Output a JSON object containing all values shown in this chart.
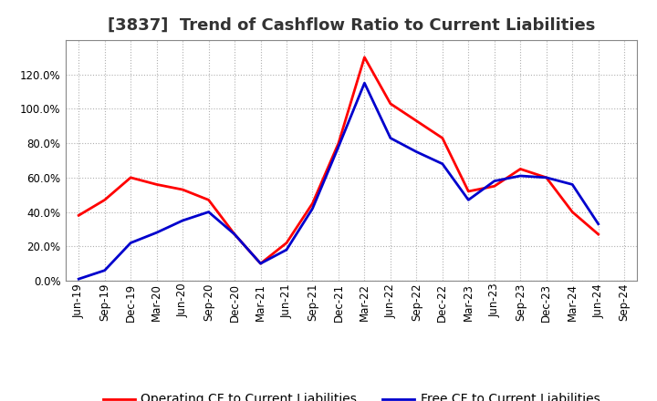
{
  "title": "[3837]  Trend of Cashflow Ratio to Current Liabilities",
  "x_labels": [
    "Jun-19",
    "Sep-19",
    "Dec-19",
    "Mar-20",
    "Jun-20",
    "Sep-20",
    "Dec-20",
    "Mar-21",
    "Jun-21",
    "Sep-21",
    "Dec-21",
    "Mar-22",
    "Jun-22",
    "Sep-22",
    "Dec-22",
    "Mar-23",
    "Jun-23",
    "Sep-23",
    "Dec-23",
    "Mar-24",
    "Jun-24",
    "Sep-24"
  ],
  "operating_cf": [
    0.38,
    0.47,
    0.6,
    0.56,
    0.53,
    0.47,
    0.27,
    0.1,
    0.22,
    0.45,
    0.8,
    1.3,
    1.03,
    0.93,
    0.83,
    0.52,
    0.55,
    0.65,
    0.6,
    0.4,
    0.27,
    null
  ],
  "free_cf": [
    0.01,
    0.06,
    0.22,
    0.28,
    0.35,
    0.4,
    0.27,
    0.1,
    0.18,
    0.42,
    0.78,
    1.15,
    0.83,
    0.75,
    0.68,
    0.47,
    0.58,
    0.61,
    0.6,
    0.56,
    0.33,
    null
  ],
  "operating_color": "#ff0000",
  "free_color": "#0000cd",
  "background_color": "#ffffff",
  "plot_bg_color": "#ffffff",
  "grid_color": "#b0b0b0",
  "ylim": [
    0.0,
    1.4
  ],
  "yticks": [
    0.0,
    0.2,
    0.4,
    0.6,
    0.8,
    1.0,
    1.2
  ],
  "legend_operating": "Operating CF to Current Liabilities",
  "legend_free": "Free CF to Current Liabilities",
  "title_fontsize": 13,
  "title_color": "#333333",
  "tick_fontsize": 8.5,
  "legend_fontsize": 10,
  "linewidth": 2.0
}
